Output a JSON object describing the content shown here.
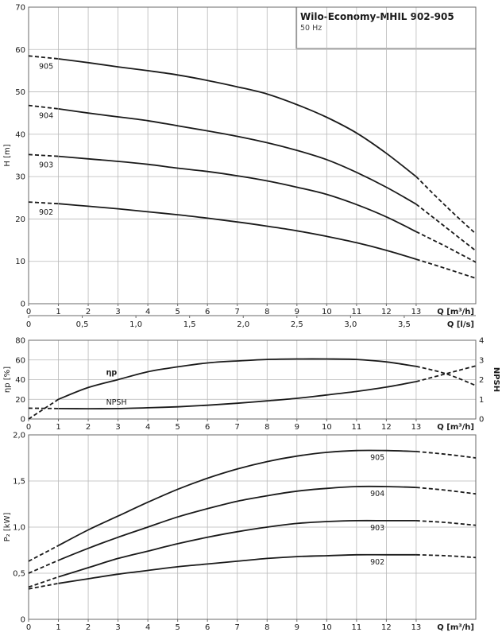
{
  "title": {
    "main": "Wilo-Economy-MHIL 902-905",
    "sub": "50 Hz"
  },
  "chart_data": [
    {
      "type": "line",
      "id": "head",
      "ylabel": "H [m]",
      "xlabel": "Q [m³/h]",
      "xlim": [
        0,
        15
      ],
      "ylim": [
        0,
        70
      ],
      "xticks": [
        0,
        1,
        2,
        3,
        4,
        5,
        6,
        7,
        8,
        9,
        10,
        11,
        12,
        13
      ],
      "yticks": [
        0,
        10,
        20,
        30,
        40,
        50,
        60,
        70
      ],
      "secondary_x": {
        "label": "Q [l/s]",
        "ticks": [
          "0",
          "0,5",
          "1,0",
          "1,5",
          "2,0",
          "2,5",
          "3,0",
          "3,5"
        ],
        "tick_values_m3h": [
          0,
          1.8,
          3.6,
          5.4,
          7.2,
          9.0,
          10.8,
          12.6
        ]
      },
      "grid": true,
      "series": [
        {
          "name": "905",
          "x": [
            0,
            1,
            2,
            3,
            4,
            5,
            6,
            7,
            8,
            9,
            10,
            11,
            12,
            13,
            14,
            15
          ],
          "y": [
            58.5,
            57.8,
            56.9,
            55.9,
            55.0,
            54.0,
            52.7,
            51.2,
            49.5,
            47.0,
            44.0,
            40.3,
            35.5,
            30.0,
            23.0,
            16.5
          ],
          "solid_from": 1,
          "solid_to": 13
        },
        {
          "name": "904",
          "x": [
            0,
            1,
            2,
            3,
            4,
            5,
            6,
            7,
            8,
            9,
            10,
            11,
            12,
            13,
            14,
            15
          ],
          "y": [
            46.8,
            46.0,
            45.0,
            44.1,
            43.2,
            42.0,
            40.8,
            39.5,
            38.0,
            36.2,
            34.0,
            31.0,
            27.5,
            23.5,
            18.0,
            12.5
          ],
          "solid_from": 1,
          "solid_to": 13
        },
        {
          "name": "903",
          "x": [
            0,
            1,
            2,
            3,
            4,
            5,
            6,
            7,
            8,
            9,
            10,
            11,
            12,
            13,
            14,
            15
          ],
          "y": [
            35.2,
            34.8,
            34.2,
            33.6,
            32.9,
            32.0,
            31.2,
            30.2,
            29.0,
            27.5,
            25.8,
            23.4,
            20.5,
            17.0,
            13.5,
            9.8
          ],
          "solid_from": 1,
          "solid_to": 13
        },
        {
          "name": "902",
          "x": [
            0,
            1,
            2,
            3,
            4,
            5,
            6,
            7,
            8,
            9,
            10,
            11,
            12,
            13,
            14,
            15
          ],
          "y": [
            24.0,
            23.6,
            23.0,
            22.4,
            21.7,
            21.0,
            20.2,
            19.3,
            18.3,
            17.2,
            15.9,
            14.4,
            12.6,
            10.5,
            8.3,
            6.0
          ],
          "solid_from": 1,
          "solid_to": 13
        }
      ]
    },
    {
      "type": "line",
      "id": "efficiency",
      "ylabel": "ηp [%]",
      "ylabel_right": "NPSH",
      "xlabel": "Q [m³/h]",
      "xlim": [
        0,
        15
      ],
      "ylim": [
        0,
        80
      ],
      "ylim_right": [
        0,
        4
      ],
      "xticks": [
        0,
        1,
        2,
        3,
        4,
        5,
        6,
        7,
        8,
        9,
        10,
        11,
        12,
        13
      ],
      "yticks": [
        0,
        20,
        40,
        60,
        80
      ],
      "yticks_right": [
        0,
        1,
        2,
        3,
        4
      ],
      "grid": true,
      "series": [
        {
          "name": "ηp",
          "axis": "left",
          "x": [
            0,
            1,
            2,
            3,
            4,
            5,
            6,
            7,
            8,
            9,
            10,
            11,
            12,
            13,
            14,
            15
          ],
          "y": [
            0,
            20,
            32,
            40,
            48,
            53,
            57,
            59,
            60.5,
            61,
            61,
            60.5,
            58,
            53.5,
            46,
            34
          ],
          "solid_from": 1,
          "solid_to": 13
        },
        {
          "name": "NPSH",
          "axis": "right",
          "x": [
            0,
            1,
            2,
            3,
            4,
            5,
            6,
            7,
            8,
            9,
            10,
            11,
            12,
            13,
            14,
            15
          ],
          "y": [
            0.55,
            0.53,
            0.52,
            0.53,
            0.57,
            0.62,
            0.7,
            0.8,
            0.92,
            1.05,
            1.22,
            1.4,
            1.62,
            1.9,
            2.3,
            2.7
          ],
          "solid_from": 1,
          "solid_to": 13
        }
      ]
    },
    {
      "type": "line",
      "id": "power",
      "ylabel": "P₂ [kW]",
      "xlabel": "Q [m³/h]",
      "xlim": [
        0,
        15
      ],
      "ylim": [
        0,
        2.0
      ],
      "xticks": [
        0,
        1,
        2,
        3,
        4,
        5,
        6,
        7,
        8,
        9,
        10,
        11,
        12,
        13
      ],
      "yticks": [
        "0",
        "0,5",
        "1,0",
        "1,5",
        "2,0"
      ],
      "ytick_values": [
        0,
        0.5,
        1.0,
        1.5,
        2.0
      ],
      "grid": true,
      "series": [
        {
          "name": "905",
          "x": [
            0,
            1,
            2,
            3,
            4,
            5,
            6,
            7,
            8,
            9,
            10,
            11,
            12,
            13,
            14,
            15
          ],
          "y": [
            0.63,
            0.8,
            0.97,
            1.12,
            1.27,
            1.41,
            1.53,
            1.63,
            1.71,
            1.77,
            1.81,
            1.83,
            1.83,
            1.82,
            1.79,
            1.75
          ],
          "solid_from": 1,
          "solid_to": 13
        },
        {
          "name": "904",
          "x": [
            0,
            1,
            2,
            3,
            4,
            5,
            6,
            7,
            8,
            9,
            10,
            11,
            12,
            13,
            14,
            15
          ],
          "y": [
            0.5,
            0.64,
            0.77,
            0.89,
            1.0,
            1.11,
            1.2,
            1.28,
            1.34,
            1.39,
            1.42,
            1.44,
            1.44,
            1.43,
            1.4,
            1.36
          ],
          "solid_from": 1,
          "solid_to": 13
        },
        {
          "name": "903",
          "x": [
            0,
            1,
            2,
            3,
            4,
            5,
            6,
            7,
            8,
            9,
            10,
            11,
            12,
            13,
            14,
            15
          ],
          "y": [
            0.35,
            0.46,
            0.56,
            0.66,
            0.74,
            0.82,
            0.89,
            0.95,
            1.0,
            1.04,
            1.06,
            1.07,
            1.07,
            1.07,
            1.05,
            1.02
          ],
          "solid_from": 1,
          "solid_to": 13
        },
        {
          "name": "902",
          "x": [
            0,
            1,
            2,
            3,
            4,
            5,
            6,
            7,
            8,
            9,
            10,
            11,
            12,
            13,
            14,
            15
          ],
          "y": [
            0.33,
            0.39,
            0.44,
            0.49,
            0.53,
            0.57,
            0.6,
            0.63,
            0.66,
            0.68,
            0.69,
            0.7,
            0.7,
            0.7,
            0.69,
            0.67
          ],
          "solid_from": 1,
          "solid_to": 13
        }
      ]
    }
  ]
}
